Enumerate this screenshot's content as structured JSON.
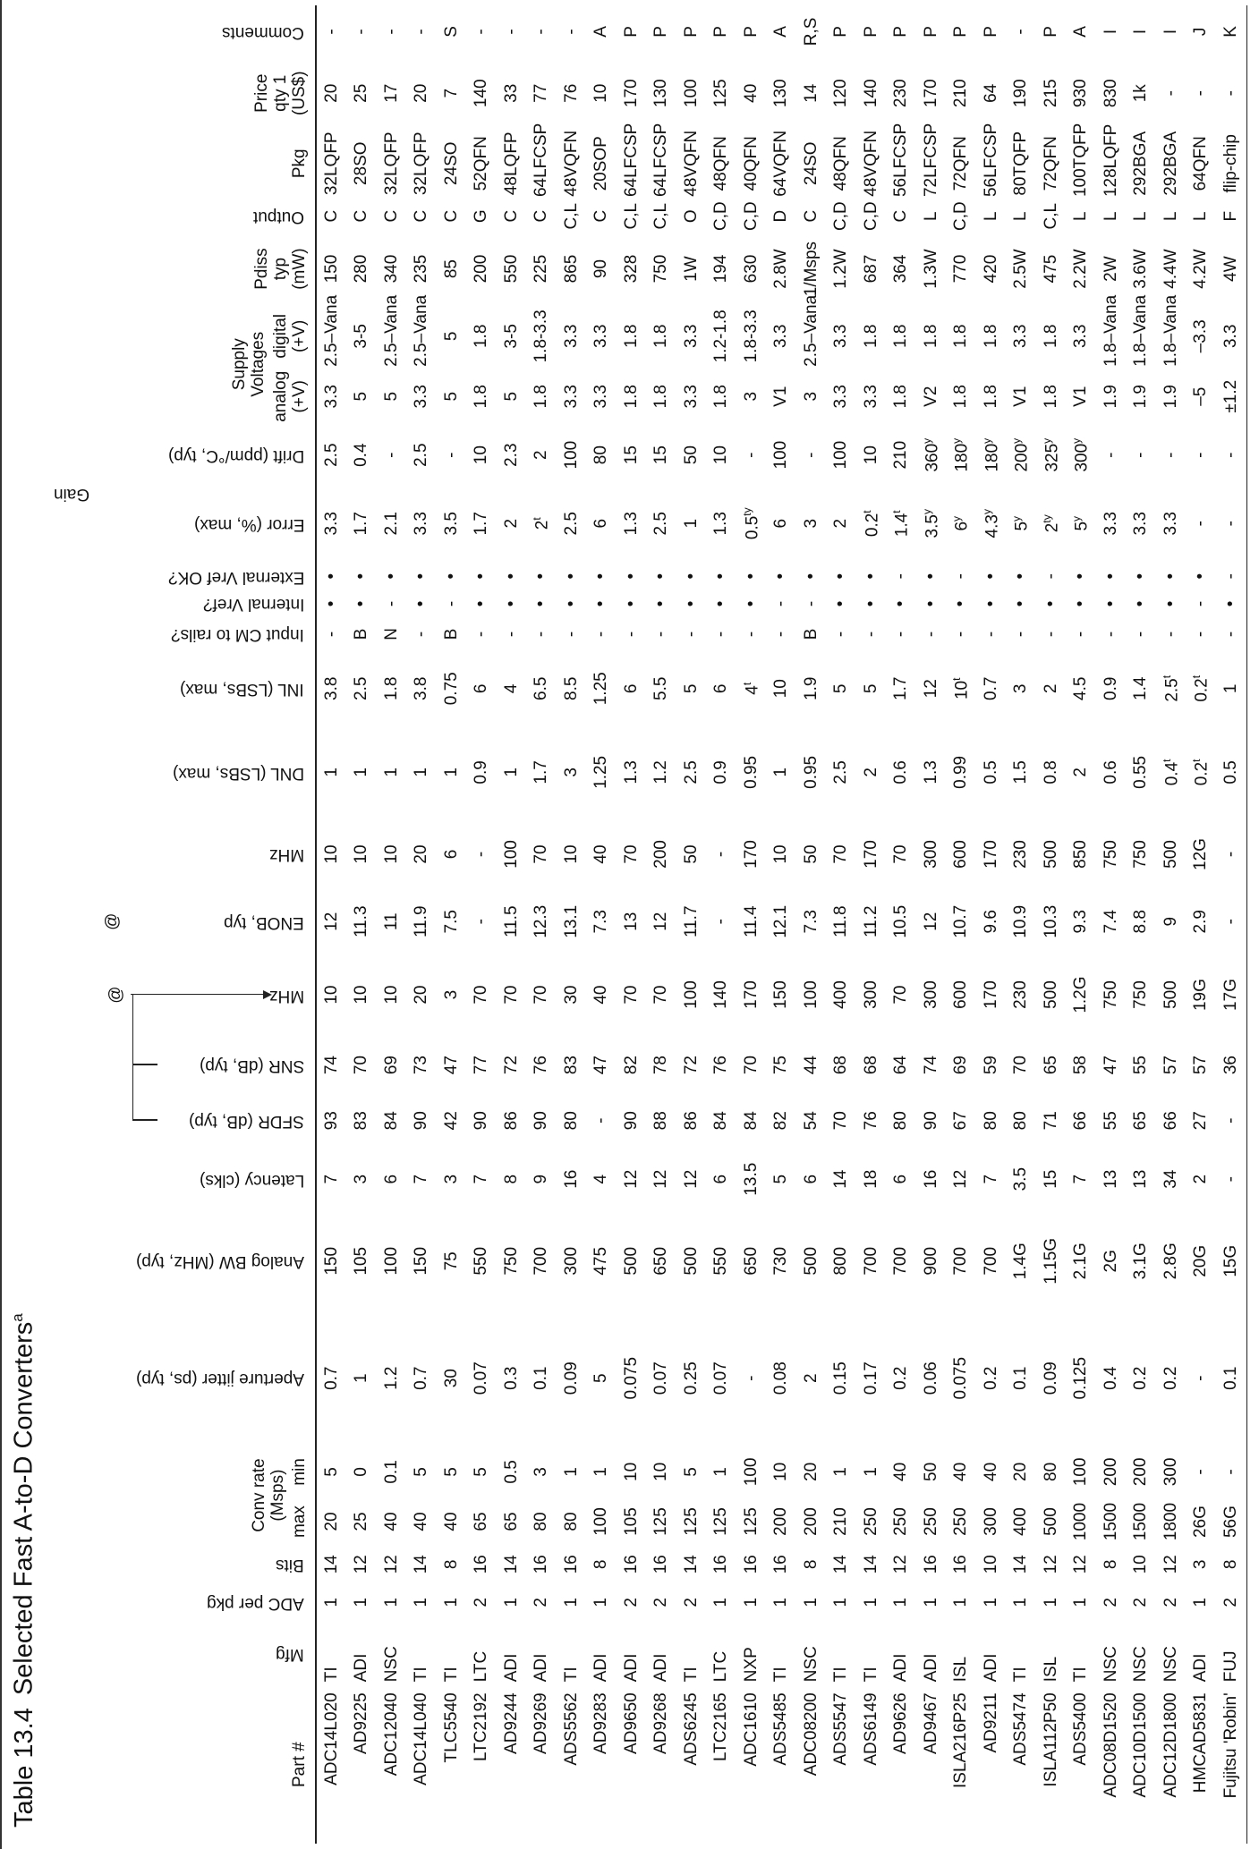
{
  "header": {
    "label": "Table 13.4",
    "title": "Selected Fast A-to-D Converters",
    "title_note": "a"
  },
  "groups": {
    "conv_rate": [
      "Conv rate",
      "(Msps)"
    ],
    "gain": "Gain",
    "supply": [
      "Supply",
      "Voltages"
    ],
    "at_marks": [
      "@",
      "@"
    ]
  },
  "columns": [
    [
      "Part #"
    ],
    [
      "Mfg"
    ],
    [
      "ADC per pkg"
    ],
    [
      "Bits"
    ],
    [
      "max"
    ],
    [
      "min"
    ],
    [
      "Aperture jitter (ps, typ)"
    ],
    [
      "Analog BW (MHz, typ)"
    ],
    [
      "Latency (clks)"
    ],
    [
      "SFDR (dB, typ)"
    ],
    [
      "SNR (dB, typ)"
    ],
    [
      "MHz"
    ],
    [
      "ENOB, typ"
    ],
    [
      "MHz"
    ],
    [
      "DNL (LSBs, max)"
    ],
    [
      "INL (LSBs, max)"
    ],
    [
      "Input CM to rails?"
    ],
    [
      "Internal Vref?"
    ],
    [
      "External Vref OK?"
    ],
    [
      "Error (%, max)"
    ],
    [
      "Drift (ppm/°C, typ)"
    ],
    [
      "analog",
      "(+V)"
    ],
    [
      "digital",
      "(+V)"
    ],
    [
      "Pdiss",
      "typ",
      "(mW)"
    ],
    [
      "Output"
    ],
    [
      "Pkg"
    ],
    [
      "Price",
      "qty 1",
      "(US$)"
    ],
    [
      "Comments"
    ]
  ],
  "rows": [
    [
      "ADC14L020",
      "TI",
      "1",
      "14",
      "20",
      "5",
      "0.7",
      "150",
      "7",
      "93",
      "74",
      "10",
      "12",
      "10",
      "1",
      "3.8",
      "-",
      "•",
      "•",
      "3.3",
      "2.5",
      "3.3",
      "2.5–Vana",
      "150",
      "C",
      "32LQFP",
      "20",
      "-"
    ],
    [
      "AD9225",
      "ADI",
      "1",
      "12",
      "25",
      "0",
      "1",
      "105",
      "3",
      "83",
      "70",
      "10",
      "11.3",
      "10",
      "1",
      "2.5",
      "B",
      "•",
      "•",
      "1.7",
      "0.4",
      "5",
      "3-5",
      "280",
      "C",
      "28SO",
      "25",
      "-"
    ],
    [
      "ADC12040",
      "NSC",
      "1",
      "12",
      "40",
      "0.1",
      "1.2",
      "100",
      "6",
      "84",
      "69",
      "10",
      "11",
      "10",
      "1",
      "1.8",
      "N",
      "-",
      "•",
      "2.1",
      "-",
      "5",
      "2.5–Vana",
      "340",
      "C",
      "32LQFP",
      "17",
      "-"
    ],
    [
      "ADC14L040",
      "TI",
      "1",
      "14",
      "40",
      "5",
      "0.7",
      "150",
      "7",
      "90",
      "73",
      "20",
      "11.9",
      "20",
      "1",
      "3.8",
      "-",
      "•",
      "•",
      "3.3",
      "2.5",
      "3.3",
      "2.5–Vana",
      "235",
      "C",
      "32LQFP",
      "20",
      "-"
    ],
    [
      "TLC5540",
      "TI",
      "1",
      "8",
      "40",
      "5",
      "30",
      "75",
      "3",
      "42",
      "47",
      "3",
      "7.5",
      "6",
      "1",
      "0.75",
      "B",
      "-",
      "•",
      "3.5",
      "-",
      "5",
      "5",
      "85",
      "C",
      "24SO",
      "7",
      "S"
    ],
    [
      "LTC2192",
      "LTC",
      "2",
      "16",
      "65",
      "5",
      "0.07",
      "550",
      "7",
      "90",
      "77",
      "70",
      "-",
      "-",
      "0.9",
      "6",
      "-",
      "•",
      "•",
      "1.7",
      "10",
      "1.8",
      "1.8",
      "200",
      "G",
      "52QFN",
      "140",
      "-"
    ],
    [
      "AD9244",
      "ADI",
      "1",
      "14",
      "65",
      "0.5",
      "0.3",
      "750",
      "8",
      "86",
      "72",
      "70",
      "11.5",
      "100",
      "1",
      "4",
      "-",
      "•",
      "•",
      "2",
      "2.3",
      "5",
      "3-5",
      "550",
      "C",
      "48LQFP",
      "33",
      "-"
    ],
    [
      "AD9269",
      "ADI",
      "2",
      "16",
      "80",
      "3",
      "0.1",
      "700",
      "9",
      "90",
      "76",
      "70",
      "12.3",
      "70",
      "1.7",
      "6.5",
      "-",
      "•",
      "•",
      [
        "2",
        "t"
      ],
      "2",
      "1.8",
      "1.8-3.3",
      "225",
      "C",
      "64LFCSP",
      "77",
      "-"
    ],
    [
      "ADS5562",
      "TI",
      "1",
      "16",
      "80",
      "1",
      "0.09",
      "300",
      "16",
      "80",
      "83",
      "30",
      "13.1",
      "10",
      "3",
      "8.5",
      "-",
      "•",
      "•",
      "2.5",
      "100",
      "3.3",
      "3.3",
      "865",
      "C,L",
      "48VQFN",
      "76",
      "-"
    ],
    [
      "AD9283",
      "ADI",
      "1",
      "8",
      "100",
      "1",
      "5",
      "475",
      "4",
      "-",
      "47",
      "40",
      "7.3",
      "40",
      "1.25",
      "1.25",
      "-",
      "•",
      "•",
      "6",
      "80",
      "3.3",
      "3.3",
      "90",
      "C",
      "20SOP",
      "10",
      "A"
    ],
    [
      "AD9650",
      "ADI",
      "2",
      "16",
      "105",
      "10",
      "0.075",
      "500",
      "12",
      "90",
      "82",
      "70",
      "13",
      "70",
      "1.3",
      "6",
      "-",
      "•",
      "•",
      "1.3",
      "15",
      "1.8",
      "1.8",
      "328",
      "C,L",
      "64LFCSP",
      "170",
      "P"
    ],
    [
      "AD9268",
      "ADI",
      "2",
      "16",
      "125",
      "10",
      "0.07",
      "650",
      "12",
      "88",
      "78",
      "70",
      "12",
      "200",
      "1.2",
      "5.5",
      "-",
      "•",
      "•",
      "2.5",
      "15",
      "1.8",
      "1.8",
      "750",
      "C,L",
      "64LFCSP",
      "130",
      "P"
    ],
    [
      "ADS6245",
      "TI",
      "2",
      "14",
      "125",
      "5",
      "0.25",
      "500",
      "12",
      "86",
      "72",
      "100",
      "11.7",
      "50",
      "2.5",
      "5",
      "-",
      "•",
      "•",
      "1",
      "50",
      "3.3",
      "3.3",
      "1W",
      "O",
      "48VQFN",
      "100",
      "P"
    ],
    [
      "LTC2165",
      "LTC",
      "1",
      "16",
      "125",
      "1",
      "0.07",
      "550",
      "6",
      "84",
      "76",
      "140",
      "-",
      "-",
      "0.9",
      "6",
      "-",
      "•",
      "•",
      "1.3",
      "10",
      "1.8",
      "1.2-1.8",
      "194",
      "C,D",
      "48QFN",
      "125",
      "P"
    ],
    [
      "ADC1610",
      "NXP",
      "1",
      "16",
      "125",
      "100",
      "-",
      "650",
      "13.5",
      "84",
      "70",
      "170",
      "11.4",
      "170",
      "0.95",
      [
        "4",
        "t"
      ],
      "-",
      "•",
      "•",
      [
        "0.5",
        "ty"
      ],
      "-",
      "3",
      "1.8-3.3",
      "630",
      "C,D",
      "40QFN",
      "40",
      "P"
    ],
    [
      "ADS5485",
      "TI",
      "1",
      "16",
      "200",
      "10",
      "0.08",
      "730",
      "5",
      "82",
      "75",
      "150",
      "12.1",
      "10",
      "1",
      "10",
      "-",
      "-",
      "•",
      "6",
      "100",
      "V1",
      "3.3",
      "2.8W",
      "D",
      "64VQFN",
      "130",
      "A"
    ],
    [
      "ADC08200",
      "NSC",
      "1",
      "8",
      "200",
      "20",
      "2",
      "500",
      "6",
      "54",
      "44",
      "100",
      "7.3",
      "50",
      "0.95",
      "1.9",
      "B",
      "-",
      "•",
      "3",
      "-",
      "3",
      "2.5–Vana",
      "1/Msps",
      "C",
      "24SO",
      "14",
      "R,S"
    ],
    [
      "ADS5547",
      "TI",
      "1",
      "14",
      "210",
      "1",
      "0.15",
      "800",
      "14",
      "70",
      "68",
      "400",
      "11.8",
      "70",
      "2.5",
      "5",
      "-",
      "•",
      "•",
      "2",
      "100",
      "3.3",
      "3.3",
      "1.2W",
      "C,D",
      "48QFN",
      "120",
      "P"
    ],
    [
      "ADS6149",
      "TI",
      "1",
      "14",
      "250",
      "1",
      "0.17",
      "700",
      "18",
      "76",
      "68",
      "300",
      "11.2",
      "170",
      "2",
      "5",
      "-",
      "•",
      "•",
      [
        "0.2",
        "t"
      ],
      "10",
      "3.3",
      "1.8",
      "687",
      "C,D",
      "48VQFN",
      "140",
      "P"
    ],
    [
      "AD9626",
      "ADI",
      "1",
      "12",
      "250",
      "40",
      "0.2",
      "700",
      "6",
      "80",
      "64",
      "70",
      "10.5",
      "70",
      "0.6",
      "1.7",
      "-",
      "•",
      "-",
      [
        "1.4",
        "t"
      ],
      "210",
      "1.8",
      "1.8",
      "364",
      "C",
      "56LFCSP",
      "230",
      "P"
    ],
    [
      "AD9467",
      "ADI",
      "1",
      "16",
      "250",
      "50",
      "0.06",
      "900",
      "16",
      "90",
      "74",
      "300",
      "12",
      "300",
      "1.3",
      "12",
      "-",
      "•",
      "•",
      [
        "3.5",
        "y"
      ],
      [
        "360",
        "y"
      ],
      "V2",
      "1.8",
      "1.3W",
      "L",
      "72LFCSP",
      "170",
      "P"
    ],
    [
      "ISLA216P25",
      "ISL",
      "1",
      "16",
      "250",
      "40",
      "0.075",
      "700",
      "12",
      "67",
      "69",
      "600",
      "10.7",
      "600",
      "0.99",
      [
        "10",
        "t"
      ],
      "-",
      "•",
      "-",
      [
        "6",
        "y"
      ],
      [
        "180",
        "y"
      ],
      "1.8",
      "1.8",
      "770",
      "C,D",
      "72QFN",
      "210",
      "P"
    ],
    [
      "AD9211",
      "ADI",
      "1",
      "10",
      "300",
      "40",
      "0.2",
      "700",
      "7",
      "80",
      "59",
      "170",
      "9.6",
      "170",
      "0.5",
      "0.7",
      "-",
      "•",
      "•",
      [
        "4.3",
        "y"
      ],
      [
        "180",
        "y"
      ],
      "1.8",
      "1.8",
      "420",
      "L",
      "56LFCSP",
      "64",
      "P"
    ],
    [
      "ADS5474",
      "TI",
      "1",
      "14",
      "400",
      "20",
      "0.1",
      "1.4G",
      "3.5",
      "80",
      "70",
      "230",
      "10.9",
      "230",
      "1.5",
      "3",
      "-",
      "•",
      "•",
      [
        "5",
        "y"
      ],
      [
        "200",
        "y"
      ],
      "V1",
      "3.3",
      "2.5W",
      "L",
      "80TQFP",
      "190",
      "-"
    ],
    [
      "ISLA112P50",
      "ISL",
      "1",
      "12",
      "500",
      "80",
      "0.09",
      "1.15G",
      "15",
      "71",
      "65",
      "500",
      "10.3",
      "500",
      "0.8",
      "2",
      "-",
      "•",
      "-",
      [
        "2",
        "ty"
      ],
      [
        "325",
        "y"
      ],
      "1.8",
      "1.8",
      "475",
      "C,L",
      "72QFN",
      "215",
      "P"
    ],
    [
      "ADS5400",
      "TI",
      "1",
      "12",
      "1000",
      "100",
      "0.125",
      "2.1G",
      "7",
      "66",
      "58",
      "1.2G",
      "9.3",
      "850",
      "2",
      "4.5",
      "-",
      "•",
      "•",
      [
        "5",
        "y"
      ],
      [
        "300",
        "y"
      ],
      "V1",
      "3.3",
      "2.2W",
      "L",
      "100TQFP",
      "930",
      "A"
    ],
    [
      "ADC08D1520",
      "NSC",
      "2",
      "8",
      "1500",
      "200",
      "0.4",
      "2G",
      "13",
      "55",
      "47",
      "750",
      "7.4",
      "750",
      "0.6",
      "0.9",
      "-",
      "•",
      "•",
      "3.3",
      "-",
      "1.9",
      "1.8–Vana",
      "2W",
      "L",
      "128LQFP",
      "830",
      "I"
    ],
    [
      "ADC10D1500",
      "NSC",
      "2",
      "10",
      "1500",
      "200",
      "0.2",
      "3.1G",
      "13",
      "65",
      "55",
      "750",
      "8.8",
      "750",
      "0.55",
      "1.4",
      "-",
      "•",
      "•",
      "3.3",
      "-",
      "1.9",
      "1.8–Vana",
      "3.6W",
      "L",
      "292BGA",
      "1k",
      "I"
    ],
    [
      "ADC12D1800",
      "NSC",
      "2",
      "12",
      "1800",
      "300",
      "0.2",
      "2.8G",
      "34",
      "66",
      "57",
      "500",
      "9",
      "500",
      [
        "0.4",
        "t"
      ],
      [
        "2.5",
        "t"
      ],
      "-",
      "•",
      "•",
      "3.3",
      "-",
      "1.9",
      "1.8–Vana",
      "4.4W",
      "L",
      "292BGA",
      "-",
      "I"
    ],
    [
      "HMCAD5831",
      "ADI",
      "1",
      "3",
      "26G",
      "-",
      "-",
      "20G",
      "2",
      "27",
      "57",
      "19G",
      "2.9",
      "12G",
      [
        "0.2",
        "t"
      ],
      [
        "0.2",
        "t"
      ],
      "-",
      "-",
      "•",
      "-",
      "-",
      "–5",
      "–3.3",
      "4.2W",
      "L",
      "64QFN",
      "-",
      "J"
    ],
    [
      "Fujitsu 'Robin'",
      "FUJ",
      "2",
      "8",
      "56G",
      "-",
      "0.1",
      "15G",
      "-",
      "-",
      "36",
      "17G",
      "-",
      "-",
      "0.5",
      "1",
      "-",
      "•",
      "-",
      "-",
      "-",
      "±1.2",
      "3.3",
      "4W",
      "F",
      "flip-chip",
      "-",
      "K"
    ]
  ]
}
